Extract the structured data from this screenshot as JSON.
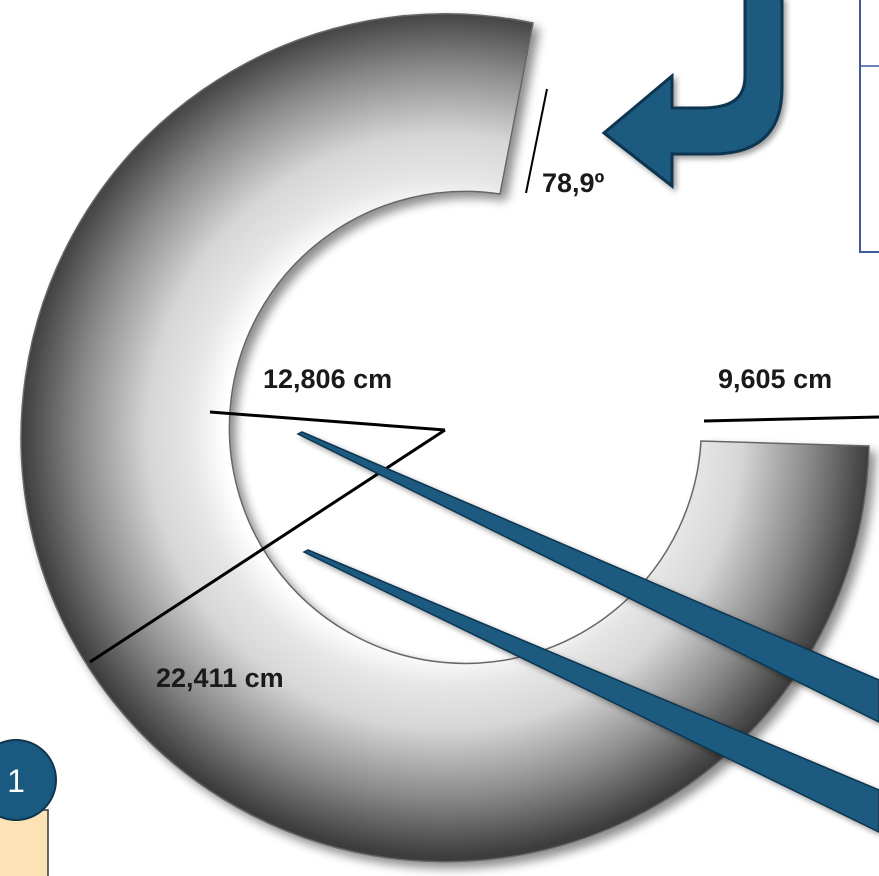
{
  "labels": {
    "angle": "78,9º",
    "inner_radius": "12,806 cm",
    "outer_radius": "22,411 cm",
    "width": "9,605 cm"
  },
  "badge": {
    "number": "1"
  },
  "colors": {
    "ring_dark": "#3a3a3a",
    "ring_light": "#f2f2f2",
    "arrow_blue": "#1a5a80",
    "arrow_outline": "#0f3550",
    "line": "#000000",
    "badge_bg": "#1a5a80",
    "tab_bg": "#fbe3b5",
    "panel_border": "#3b5aa0"
  }
}
